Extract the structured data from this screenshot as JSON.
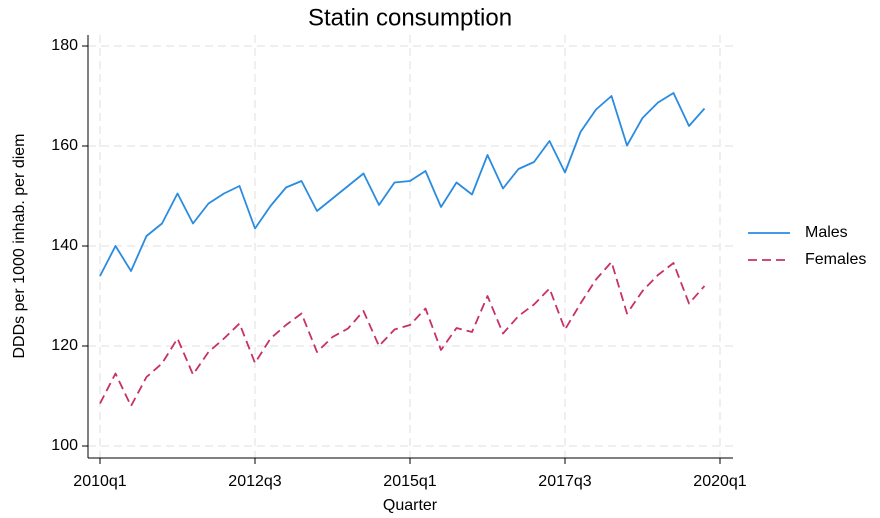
{
  "chart_data": {
    "type": "line",
    "title": "Statin consumption",
    "x_label": "Quarter",
    "y_label": "DDDs per 1000 inhab. per diem",
    "x": [
      "2010q1",
      "2010q2",
      "2010q3",
      "2010q4",
      "2011q1",
      "2011q2",
      "2011q3",
      "2011q4",
      "2012q1",
      "2012q2",
      "2012q3",
      "2012q4",
      "2013q1",
      "2013q2",
      "2013q3",
      "2013q4",
      "2014q1",
      "2014q2",
      "2014q3",
      "2014q4",
      "2015q1",
      "2015q2",
      "2015q3",
      "2015q4",
      "2016q1",
      "2016q2",
      "2016q3",
      "2016q4",
      "2017q1",
      "2017q2",
      "2017q3",
      "2017q4",
      "2018q1",
      "2018q2",
      "2018q3",
      "2018q4",
      "2019q1",
      "2019q2",
      "2019q3",
      "2019q4"
    ],
    "series": [
      {
        "name": "Males",
        "color": "#2a8be0",
        "dash": false,
        "values": [
          134,
          140,
          135,
          142,
          144.5,
          150.5,
          144.5,
          148.5,
          150.5,
          152,
          143.5,
          148,
          151.7,
          153,
          147,
          149.5,
          152,
          154.5,
          148.2,
          152.7,
          153,
          155,
          147.8,
          152.7,
          150.3,
          158.2,
          151.5,
          155.4,
          156.8,
          161,
          154.7,
          162.8,
          167.3,
          170,
          160.1,
          165.6,
          168.7,
          170.6,
          164,
          167.5
        ]
      },
      {
        "name": "Females",
        "color": "#c8306a",
        "dash": true,
        "values": [
          108.5,
          114.5,
          108,
          113.8,
          116.5,
          121.5,
          114.3,
          118.8,
          121.5,
          124.5,
          116.6,
          121.5,
          124.2,
          126.5,
          118.8,
          121.8,
          123.5,
          127,
          120,
          123.3,
          124.2,
          127.5,
          119.2,
          123.6,
          122.8,
          130,
          122.5,
          126,
          128.3,
          131.5,
          123.3,
          128.5,
          133.3,
          136.8,
          126.5,
          131,
          134.2,
          136.6,
          128.5,
          132
        ]
      }
    ],
    "xlim": [
      "2010q1",
      "2020q1"
    ],
    "xticks": [
      "2010q1",
      "2012q3",
      "2015q1",
      "2017q3",
      "2020q1"
    ],
    "ylim": [
      100,
      180
    ],
    "yticks": [
      100,
      120,
      140,
      160,
      180
    ],
    "grid": true,
    "legend": "right"
  }
}
